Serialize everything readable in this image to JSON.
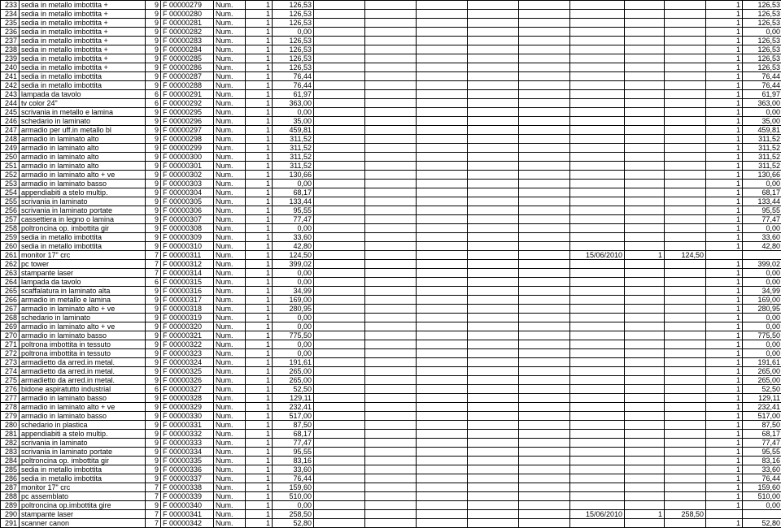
{
  "rows": [
    {
      "id": "233",
      "desc": "sedia in metallo imbottita +",
      "n1": "9",
      "code": "F 00000279",
      "um": "Num.",
      "q": "1",
      "val": "126,53",
      "date": "",
      "q2": "",
      "v2": "",
      "q3": "1",
      "v3": "126,53"
    },
    {
      "id": "234",
      "desc": "sedia in metallo imbottita +",
      "n1": "9",
      "code": "F 00000280",
      "um": "Num.",
      "q": "1",
      "val": "126,53",
      "date": "",
      "q2": "",
      "v2": "",
      "q3": "1",
      "v3": "126,53"
    },
    {
      "id": "235",
      "desc": "sedia in metallo imbottita +",
      "n1": "9",
      "code": "F 00000281",
      "um": "Num.",
      "q": "1",
      "val": "126,53",
      "date": "",
      "q2": "",
      "v2": "",
      "q3": "1",
      "v3": "126,53"
    },
    {
      "id": "236",
      "desc": "sedia in metallo imbottita +",
      "n1": "9",
      "code": "F 00000282",
      "um": "Num.",
      "q": "1",
      "val": "0,00",
      "date": "",
      "q2": "",
      "v2": "",
      "q3": "1",
      "v3": "0,00"
    },
    {
      "id": "237",
      "desc": "sedia in metallo imbottita +",
      "n1": "9",
      "code": "F 00000283",
      "um": "Num.",
      "q": "1",
      "val": "126,53",
      "date": "",
      "q2": "",
      "v2": "",
      "q3": "1",
      "v3": "126,53"
    },
    {
      "id": "238",
      "desc": "sedia in metallo imbottita +",
      "n1": "9",
      "code": "F 00000284",
      "um": "Num.",
      "q": "1",
      "val": "126,53",
      "date": "",
      "q2": "",
      "v2": "",
      "q3": "1",
      "v3": "126,53"
    },
    {
      "id": "239",
      "desc": "sedia in metallo imbottita +",
      "n1": "9",
      "code": "F 00000285",
      "um": "Num.",
      "q": "1",
      "val": "126,53",
      "date": "",
      "q2": "",
      "v2": "",
      "q3": "1",
      "v3": "126,53"
    },
    {
      "id": "240",
      "desc": "sedia in metallo imbottita +",
      "n1": "9",
      "code": "F 00000286",
      "um": "Num.",
      "q": "1",
      "val": "126,53",
      "date": "",
      "q2": "",
      "v2": "",
      "q3": "1",
      "v3": "126,53"
    },
    {
      "id": "241",
      "desc": "sedia in metallo imbottita",
      "n1": "9",
      "code": "F 00000287",
      "um": "Num.",
      "q": "1",
      "val": "76,44",
      "date": "",
      "q2": "",
      "v2": "",
      "q3": "1",
      "v3": "76,44"
    },
    {
      "id": "242",
      "desc": "sedia in metallo imbottita",
      "n1": "9",
      "code": "F 00000288",
      "um": "Num.",
      "q": "1",
      "val": "76,44",
      "date": "",
      "q2": "",
      "v2": "",
      "q3": "1",
      "v3": "76,44"
    },
    {
      "id": "243",
      "desc": "lampada da tavolo",
      "n1": "6",
      "code": "F 00000291",
      "um": "Num.",
      "q": "1",
      "val": "61,97",
      "date": "",
      "q2": "",
      "v2": "",
      "q3": "1",
      "v3": "61,97"
    },
    {
      "id": "244",
      "desc": "tv color 24\"",
      "n1": "6",
      "code": "F 00000292",
      "um": "Num.",
      "q": "1",
      "val": "363,00",
      "date": "",
      "q2": "",
      "v2": "",
      "q3": "1",
      "v3": "363,00"
    },
    {
      "id": "245",
      "desc": "scrivania in metallo e lamina",
      "n1": "9",
      "code": "F 00000295",
      "um": "Num.",
      "q": "1",
      "val": "0,00",
      "date": "",
      "q2": "",
      "v2": "",
      "q3": "1",
      "v3": "0,00"
    },
    {
      "id": "246",
      "desc": "schedario in laminato",
      "n1": "9",
      "code": "F 00000296",
      "um": "Num.",
      "q": "1",
      "val": "35,00",
      "date": "",
      "q2": "",
      "v2": "",
      "q3": "1",
      "v3": "35,00"
    },
    {
      "id": "247",
      "desc": "armadio per uff.in metallo bl",
      "n1": "9",
      "code": "F 00000297",
      "um": "Num.",
      "q": "1",
      "val": "459,81",
      "date": "",
      "q2": "",
      "v2": "",
      "q3": "1",
      "v3": "459,81"
    },
    {
      "id": "248",
      "desc": "armadio in laminato alto",
      "n1": "9",
      "code": "F 00000298",
      "um": "Num.",
      "q": "1",
      "val": "311,52",
      "date": "",
      "q2": "",
      "v2": "",
      "q3": "1",
      "v3": "311,52"
    },
    {
      "id": "249",
      "desc": "armadio in laminato alto",
      "n1": "9",
      "code": "F 00000299",
      "um": "Num.",
      "q": "1",
      "val": "311,52",
      "date": "",
      "q2": "",
      "v2": "",
      "q3": "1",
      "v3": "311,52"
    },
    {
      "id": "250",
      "desc": "armadio in laminato alto",
      "n1": "9",
      "code": "F 00000300",
      "um": "Num.",
      "q": "1",
      "val": "311,52",
      "date": "",
      "q2": "",
      "v2": "",
      "q3": "1",
      "v3": "311,52"
    },
    {
      "id": "251",
      "desc": "armadio in laminato alto",
      "n1": "9",
      "code": "F 00000301",
      "um": "Num.",
      "q": "1",
      "val": "311,52",
      "date": "",
      "q2": "",
      "v2": "",
      "q3": "1",
      "v3": "311,52"
    },
    {
      "id": "252",
      "desc": "armadio in laminato alto + ve",
      "n1": "9",
      "code": "F 00000302",
      "um": "Num.",
      "q": "1",
      "val": "130,66",
      "date": "",
      "q2": "",
      "v2": "",
      "q3": "1",
      "v3": "130,66"
    },
    {
      "id": "253",
      "desc": "armadio in laminato basso",
      "n1": "9",
      "code": "F 00000303",
      "um": "Num.",
      "q": "1",
      "val": "0,00",
      "date": "",
      "q2": "",
      "v2": "",
      "q3": "1",
      "v3": "0,00"
    },
    {
      "id": "254",
      "desc": "appendiabiti a stelo multip.",
      "n1": "9",
      "code": "F 00000304",
      "um": "Num.",
      "q": "1",
      "val": "68,17",
      "date": "",
      "q2": "",
      "v2": "",
      "q3": "1",
      "v3": "68,17"
    },
    {
      "id": "255",
      "desc": "scrivania in laminato",
      "n1": "9",
      "code": "F 00000305",
      "um": "Num.",
      "q": "1",
      "val": "133,44",
      "date": "",
      "q2": "",
      "v2": "",
      "q3": "1",
      "v3": "133,44"
    },
    {
      "id": "256",
      "desc": "scrivania in laminato portate",
      "n1": "9",
      "code": "F 00000306",
      "um": "Num.",
      "q": "1",
      "val": "95,55",
      "date": "",
      "q2": "",
      "v2": "",
      "q3": "1",
      "v3": "95,55"
    },
    {
      "id": "257",
      "desc": "cassettiera in legno o lamina",
      "n1": "9",
      "code": "F 00000307",
      "um": "Num.",
      "q": "1",
      "val": "77,47",
      "date": "",
      "q2": "",
      "v2": "",
      "q3": "1",
      "v3": "77,47"
    },
    {
      "id": "258",
      "desc": "poltroncina op. imbottita gir",
      "n1": "9",
      "code": "F 00000308",
      "um": "Num.",
      "q": "1",
      "val": "0,00",
      "date": "",
      "q2": "",
      "v2": "",
      "q3": "1",
      "v3": "0,00"
    },
    {
      "id": "259",
      "desc": "sedia in metallo imbottita",
      "n1": "9",
      "code": "F 00000309",
      "um": "Num.",
      "q": "1",
      "val": "33,60",
      "date": "",
      "q2": "",
      "v2": "",
      "q3": "1",
      "v3": "33,60"
    },
    {
      "id": "260",
      "desc": "sedia in metallo imbottita",
      "n1": "9",
      "code": "F 00000310",
      "um": "Num.",
      "q": "1",
      "val": "42,80",
      "date": "",
      "q2": "",
      "v2": "",
      "q3": "1",
      "v3": "42,80"
    },
    {
      "id": "261",
      "desc": "monitor 17\" crc",
      "n1": "7",
      "code": "F 00000311",
      "um": "Num.",
      "q": "1",
      "val": "124,50",
      "date": "15/06/2010",
      "q2": "1",
      "v2": "124,50",
      "q3": "",
      "v3": ""
    },
    {
      "id": "262",
      "desc": "pc tower",
      "n1": "7",
      "code": "F 00000312",
      "um": "Num.",
      "q": "1",
      "val": "399,02",
      "date": "",
      "q2": "",
      "v2": "",
      "q3": "1",
      "v3": "399,02"
    },
    {
      "id": "263",
      "desc": "stampante laser",
      "n1": "7",
      "code": "F 00000314",
      "um": "Num.",
      "q": "1",
      "val": "0,00",
      "date": "",
      "q2": "",
      "v2": "",
      "q3": "1",
      "v3": "0,00"
    },
    {
      "id": "264",
      "desc": "lampada da tavolo",
      "n1": "6",
      "code": "F 00000315",
      "um": "Num.",
      "q": "1",
      "val": "0,00",
      "date": "",
      "q2": "",
      "v2": "",
      "q3": "1",
      "v3": "0,00"
    },
    {
      "id": "265",
      "desc": "scaffalatura in laminato alta",
      "n1": "9",
      "code": "F 00000316",
      "um": "Num.",
      "q": "1",
      "val": "34,99",
      "date": "",
      "q2": "",
      "v2": "",
      "q3": "1",
      "v3": "34,99"
    },
    {
      "id": "266",
      "desc": "armadio in metallo e  lamina",
      "n1": "9",
      "code": "F 00000317",
      "um": "Num.",
      "q": "1",
      "val": "169,00",
      "date": "",
      "q2": "",
      "v2": "",
      "q3": "1",
      "v3": "169,00"
    },
    {
      "id": "267",
      "desc": "armadio in laminato alto + ve",
      "n1": "9",
      "code": "F 00000318",
      "um": "Num.",
      "q": "1",
      "val": "280,95",
      "date": "",
      "q2": "",
      "v2": "",
      "q3": "1",
      "v3": "280,95"
    },
    {
      "id": "268",
      "desc": "schedario in laminato",
      "n1": "9",
      "code": "F 00000319",
      "um": "Num.",
      "q": "1",
      "val": "0,00",
      "date": "",
      "q2": "",
      "v2": "",
      "q3": "1",
      "v3": "0,00"
    },
    {
      "id": "269",
      "desc": "armadio in laminato alto + ve",
      "n1": "9",
      "code": "F 00000320",
      "um": "Num.",
      "q": "1",
      "val": "0,00",
      "date": "",
      "q2": "",
      "v2": "",
      "q3": "1",
      "v3": "0,00"
    },
    {
      "id": "270",
      "desc": "armadio in laminato basso",
      "n1": "9",
      "code": "F 00000321",
      "um": "Num.",
      "q": "1",
      "val": "775,50",
      "date": "",
      "q2": "",
      "v2": "",
      "q3": "1",
      "v3": "775,50"
    },
    {
      "id": "271",
      "desc": "poltrona imbottita in tessuto",
      "n1": "9",
      "code": "F 00000322",
      "um": "Num.",
      "q": "1",
      "val": "0,00",
      "date": "",
      "q2": "",
      "v2": "",
      "q3": "1",
      "v3": "0,00"
    },
    {
      "id": "272",
      "desc": "poltrona imbottita in tessuto",
      "n1": "9",
      "code": "F 00000323",
      "um": "Num.",
      "q": "1",
      "val": "0,00",
      "date": "",
      "q2": "",
      "v2": "",
      "q3": "1",
      "v3": "0,00"
    },
    {
      "id": "273",
      "desc": "armadietto da arred.in metal.",
      "n1": "9",
      "code": "F 00000324",
      "um": "Num.",
      "q": "1",
      "val": "191,61",
      "date": "",
      "q2": "",
      "v2": "",
      "q3": "1",
      "v3": "191,61"
    },
    {
      "id": "274",
      "desc": "armadietto da arred.in metal.",
      "n1": "9",
      "code": "F 00000325",
      "um": "Num.",
      "q": "1",
      "val": "265,00",
      "date": "",
      "q2": "",
      "v2": "",
      "q3": "1",
      "v3": "265,00"
    },
    {
      "id": "275",
      "desc": "armadietto da arred.in metal.",
      "n1": "9",
      "code": "F 00000326",
      "um": "Num.",
      "q": "1",
      "val": "265,00",
      "date": "",
      "q2": "",
      "v2": "",
      "q3": "1",
      "v3": "265,00"
    },
    {
      "id": "276",
      "desc": "bidone aspiratutto industrial",
      "n1": "6",
      "code": "F 00000327",
      "um": "Num.",
      "q": "1",
      "val": "52,50",
      "date": "",
      "q2": "",
      "v2": "",
      "q3": "1",
      "v3": "52,50"
    },
    {
      "id": "277",
      "desc": "armadio in laminato basso",
      "n1": "9",
      "code": "F 00000328",
      "um": "Num.",
      "q": "1",
      "val": "129,11",
      "date": "",
      "q2": "",
      "v2": "",
      "q3": "1",
      "v3": "129,11"
    },
    {
      "id": "278",
      "desc": "armadio in laminato alto + ve",
      "n1": "9",
      "code": "F 00000329",
      "um": "Num.",
      "q": "1",
      "val": "232,41",
      "date": "",
      "q2": "",
      "v2": "",
      "q3": "1",
      "v3": "232,41"
    },
    {
      "id": "279",
      "desc": "armadio in laminato basso",
      "n1": "9",
      "code": "F 00000330",
      "um": "Num.",
      "q": "1",
      "val": "517,00",
      "date": "",
      "q2": "",
      "v2": "",
      "q3": "1",
      "v3": "517,00"
    },
    {
      "id": "280",
      "desc": "schedario in  plastica",
      "n1": "9",
      "code": "F 00000331",
      "um": "Num.",
      "q": "1",
      "val": "87,50",
      "date": "",
      "q2": "",
      "v2": "",
      "q3": "1",
      "v3": "87,50"
    },
    {
      "id": "281",
      "desc": "appendiabiti a stelo multip.",
      "n1": "9",
      "code": "F 00000332",
      "um": "Num.",
      "q": "1",
      "val": "68,17",
      "date": "",
      "q2": "",
      "v2": "",
      "q3": "1",
      "v3": "68,17"
    },
    {
      "id": "282",
      "desc": "scrivania in laminato",
      "n1": "9",
      "code": "F 00000333",
      "um": "Num.",
      "q": "1",
      "val": "77,47",
      "date": "",
      "q2": "",
      "v2": "",
      "q3": "1",
      "v3": "77,47"
    },
    {
      "id": "283",
      "desc": "scrivania in laminato portate",
      "n1": "9",
      "code": "F 00000334",
      "um": "Num.",
      "q": "1",
      "val": "95,55",
      "date": "",
      "q2": "",
      "v2": "",
      "q3": "1",
      "v3": "95,55"
    },
    {
      "id": "284",
      "desc": "poltroncina op. imbottita gir",
      "n1": "9",
      "code": "F 00000335",
      "um": "Num.",
      "q": "1",
      "val": "83,16",
      "date": "",
      "q2": "",
      "v2": "",
      "q3": "1",
      "v3": "83,16"
    },
    {
      "id": "285",
      "desc": "sedia in metallo imbottita",
      "n1": "9",
      "code": "F 00000336",
      "um": "Num.",
      "q": "1",
      "val": "33,60",
      "date": "",
      "q2": "",
      "v2": "",
      "q3": "1",
      "v3": "33,60"
    },
    {
      "id": "286",
      "desc": "sedia in metallo imbottita",
      "n1": "9",
      "code": "F 00000337",
      "um": "Num.",
      "q": "1",
      "val": "76,44",
      "date": "",
      "q2": "",
      "v2": "",
      "q3": "1",
      "v3": "76,44"
    },
    {
      "id": "287",
      "desc": "monitor 17\" crc",
      "n1": "7",
      "code": "F 00000338",
      "um": "Num.",
      "q": "1",
      "val": "159,60",
      "date": "",
      "q2": "",
      "v2": "",
      "q3": "1",
      "v3": "159,60"
    },
    {
      "id": "288",
      "desc": "pc assemblato",
      "n1": "7",
      "code": "F 00000339",
      "um": "Num.",
      "q": "1",
      "val": "510,00",
      "date": "",
      "q2": "",
      "v2": "",
      "q3": "1",
      "v3": "510,00"
    },
    {
      "id": "289",
      "desc": "poltroncina op.imbottita gire",
      "n1": "9",
      "code": "F 00000340",
      "um": "Num.",
      "q": "1",
      "val": "0,00",
      "date": "",
      "q2": "",
      "v2": "",
      "q3": "1",
      "v3": "0,00"
    },
    {
      "id": "290",
      "desc": "stampante laser",
      "n1": "7",
      "code": "F 00000341",
      "um": "Num.",
      "q": "1",
      "val": "258,50",
      "date": "15/06/2010",
      "q2": "1",
      "v2": "258,50",
      "q3": "",
      "v3": ""
    },
    {
      "id": "291",
      "desc": "scanner canon",
      "n1": "7",
      "code": "F 00000342",
      "um": "Num.",
      "q": "1",
      "val": "52,80",
      "date": "",
      "q2": "",
      "v2": "",
      "q3": "1",
      "v3": "52,80"
    }
  ]
}
